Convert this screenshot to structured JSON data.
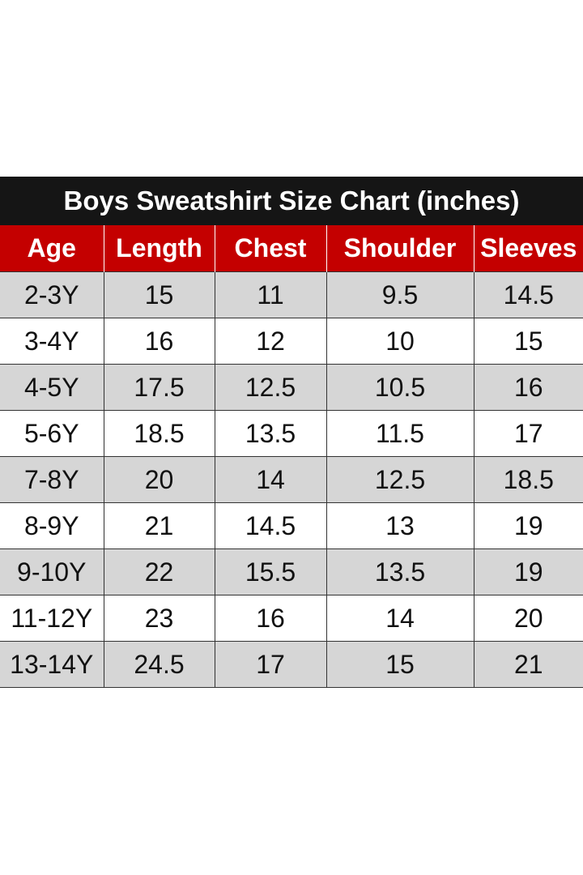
{
  "chart": {
    "title": "Boys Sweatshirt Size Chart (inches)",
    "headers": [
      "Age",
      "Length",
      "Chest",
      "Shoulder",
      "Sleeves"
    ],
    "rows": [
      [
        "2-3Y",
        "15",
        "11",
        "9.5",
        "14.5"
      ],
      [
        "3-4Y",
        "16",
        "12",
        "10",
        "15"
      ],
      [
        "4-5Y",
        "17.5",
        "12.5",
        "10.5",
        "16"
      ],
      [
        "5-6Y",
        "18.5",
        "13.5",
        "11.5",
        "17"
      ],
      [
        "7-8Y",
        "20",
        "14",
        "12.5",
        "18.5"
      ],
      [
        "8-9Y",
        "21",
        "14.5",
        "13",
        "19"
      ],
      [
        "9-10Y",
        "22",
        "15.5",
        "13.5",
        "19"
      ],
      [
        "11-12Y",
        "23",
        "16",
        "14",
        "20"
      ],
      [
        "13-14Y",
        "24.5",
        "17",
        "15",
        "21"
      ]
    ]
  },
  "colors": {
    "title_background": "#151515",
    "header_background": "#c40000",
    "striped_row": "#d6d6d6",
    "plain_row": "#ffffff"
  }
}
